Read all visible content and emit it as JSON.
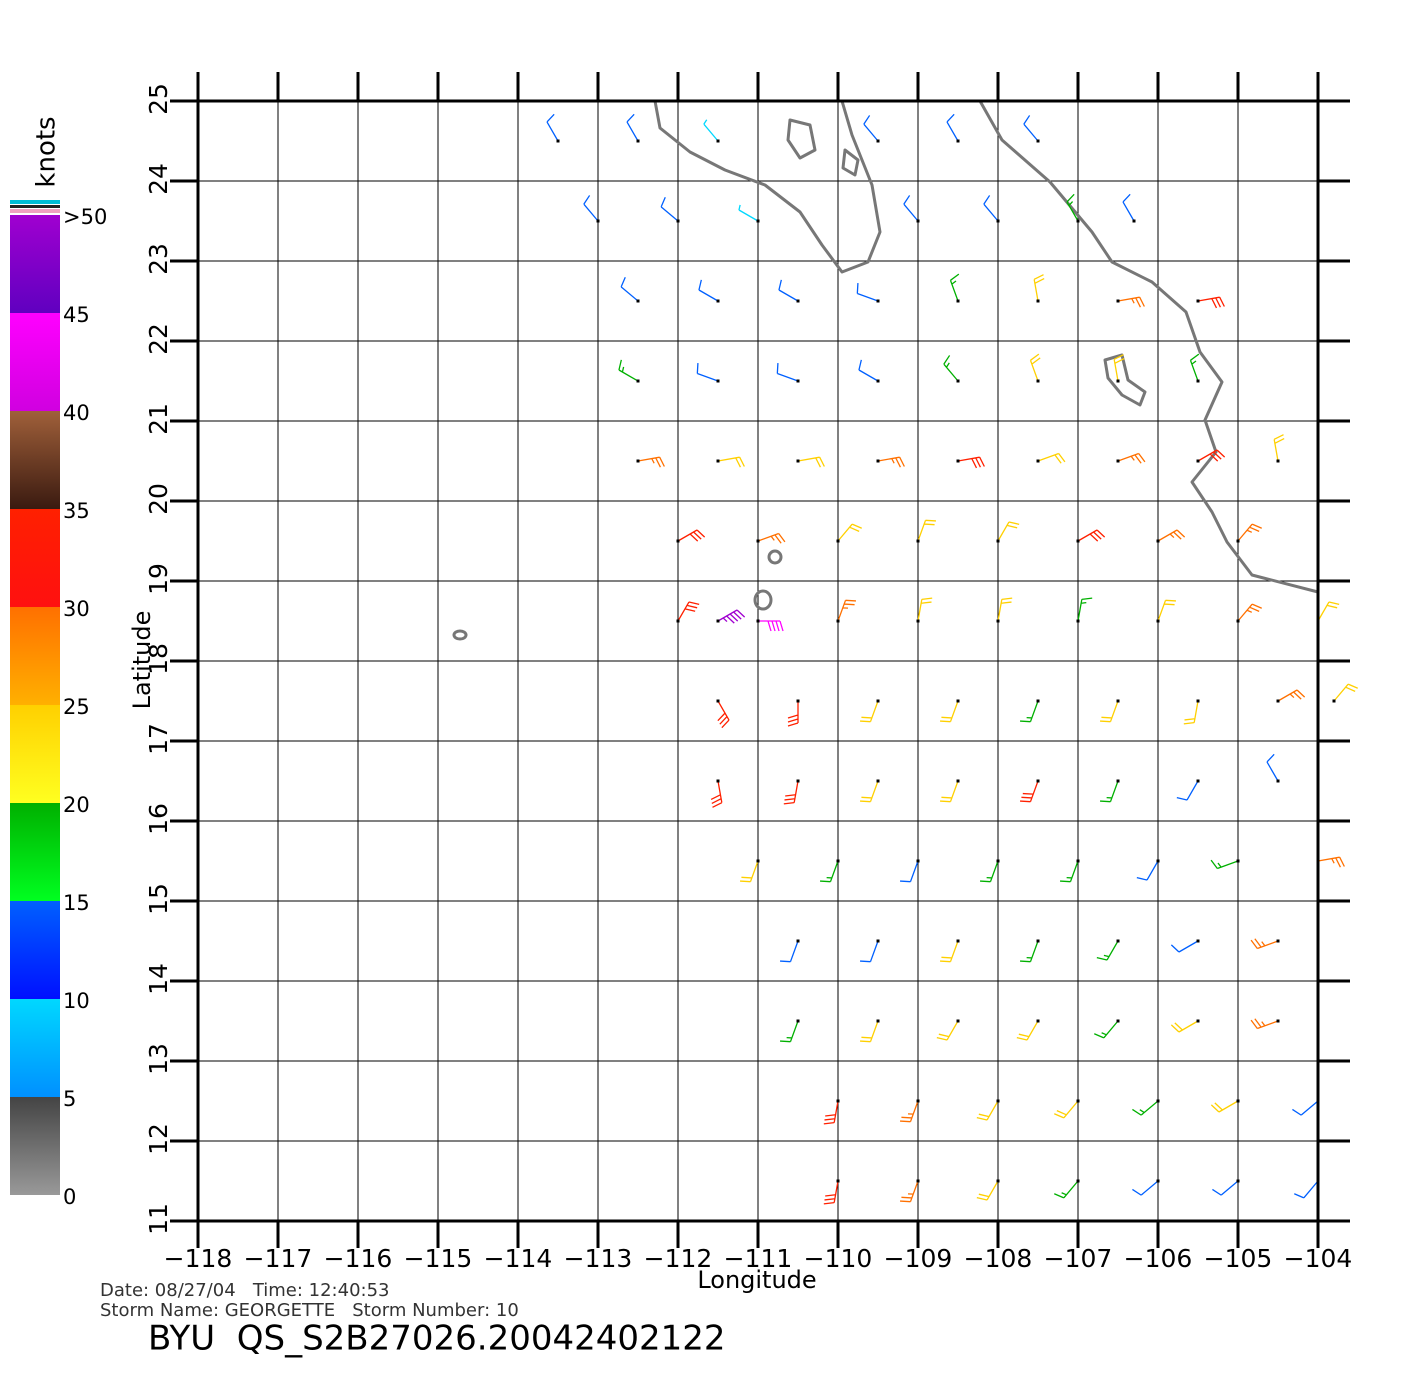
{
  "chart_data": {
    "type": "wind_barb",
    "x_label": "Longitude",
    "y_label": "Latitude",
    "xlim": [
      -118,
      -104
    ],
    "ylim": [
      11,
      25
    ],
    "xticks": [
      {
        "value": -118,
        "label": "−118"
      },
      {
        "value": -117,
        "label": "−117"
      },
      {
        "value": -116,
        "label": "−116"
      },
      {
        "value": -115,
        "label": "−115"
      },
      {
        "value": -114,
        "label": "−114"
      },
      {
        "value": -113,
        "label": "−113"
      },
      {
        "value": -112,
        "label": "−112"
      },
      {
        "value": -111,
        "label": "−111"
      },
      {
        "value": -110,
        "label": "−110"
      },
      {
        "value": -109,
        "label": "−109"
      },
      {
        "value": -108,
        "label": "−108"
      },
      {
        "value": -107,
        "label": "−107"
      },
      {
        "value": -106,
        "label": "−106"
      },
      {
        "value": -105,
        "label": "−105"
      },
      {
        "value": -104,
        "label": "−104"
      }
    ],
    "yticks": [
      11,
      12,
      13,
      14,
      15,
      16,
      17,
      18,
      19,
      20,
      21,
      22,
      23,
      24,
      25
    ],
    "grid": true,
    "colorbar": {
      "label": "knots",
      "lim": [
        0,
        50
      ],
      "ticks": [
        0,
        5,
        10,
        15,
        20,
        25,
        30,
        35,
        40,
        45,
        {
          "value": 50,
          "label": ">50"
        }
      ],
      "bands": [
        {
          "min": 0,
          "max": 5,
          "colors": [
            "#444444",
            "#999999"
          ]
        },
        {
          "min": 5,
          "max": 10,
          "colors": [
            "#00d8ff",
            "#0090ff"
          ]
        },
        {
          "min": 10,
          "max": 15,
          "colors": [
            "#0060ff",
            "#0010ff"
          ]
        },
        {
          "min": 15,
          "max": 20,
          "colors": [
            "#00b000",
            "#00ff20"
          ]
        },
        {
          "min": 20,
          "max": 25,
          "colors": [
            "#ffd000",
            "#ffff20"
          ]
        },
        {
          "min": 25,
          "max": 30,
          "colors": [
            "#ff7000",
            "#ffb000"
          ]
        },
        {
          "min": 30,
          "max": 35,
          "colors": [
            "#ff2000",
            "#ff1010"
          ]
        },
        {
          "min": 35,
          "max": 40,
          "colors": [
            "#a0603a",
            "#3a1a10"
          ]
        },
        {
          "min": 40,
          "max": 45,
          "colors": [
            "#ff00ff",
            "#d000e0"
          ]
        },
        {
          "min": 45,
          "max": 50,
          "colors": [
            "#a000d0",
            "#6000c0"
          ]
        }
      ]
    },
    "barbs": [
      {
        "lon": -113.5,
        "lat": 24.5,
        "speed": 12,
        "direction": 330
      },
      {
        "lon": -112.5,
        "lat": 24.5,
        "speed": 10,
        "direction": 330
      },
      {
        "lon": -111.5,
        "lat": 24.5,
        "speed": 8,
        "direction": 320
      },
      {
        "lon": -109.5,
        "lat": 24.5,
        "speed": 10,
        "direction": 320
      },
      {
        "lon": -108.5,
        "lat": 24.5,
        "speed": 12,
        "direction": 330
      },
      {
        "lon": -107.5,
        "lat": 24.5,
        "speed": 14,
        "direction": 320
      },
      {
        "lon": -113,
        "lat": 23.5,
        "speed": 12,
        "direction": 320
      },
      {
        "lon": -112,
        "lat": 23.5,
        "speed": 10,
        "direction": 310
      },
      {
        "lon": -111,
        "lat": 23.5,
        "speed": 8,
        "direction": 300
      },
      {
        "lon": -109,
        "lat": 23.5,
        "speed": 12,
        "direction": 320
      },
      {
        "lon": -108,
        "lat": 23.5,
        "speed": 13,
        "direction": 320
      },
      {
        "lon": -107,
        "lat": 23.5,
        "speed": 16,
        "direction": 330
      },
      {
        "lon": -106.3,
        "lat": 23.5,
        "speed": 14,
        "direction": 330
      },
      {
        "lon": -112.5,
        "lat": 22.5,
        "speed": 13,
        "direction": 310
      },
      {
        "lon": -111.5,
        "lat": 22.5,
        "speed": 12,
        "direction": 300
      },
      {
        "lon": -110.5,
        "lat": 22.5,
        "speed": 12,
        "direction": 300
      },
      {
        "lon": -109.5,
        "lat": 22.5,
        "speed": 10,
        "direction": 290
      },
      {
        "lon": -108.5,
        "lat": 22.5,
        "speed": 17,
        "direction": 340
      },
      {
        "lon": -107.5,
        "lat": 22.5,
        "speed": 22,
        "direction": 350
      },
      {
        "lon": -106.5,
        "lat": 22.5,
        "speed": 28,
        "direction": 80
      },
      {
        "lon": -105.5,
        "lat": 22.5,
        "speed": 30,
        "direction": 80
      },
      {
        "lon": -112.5,
        "lat": 21.5,
        "speed": 16,
        "direction": 300
      },
      {
        "lon": -111.5,
        "lat": 21.5,
        "speed": 14,
        "direction": 290
      },
      {
        "lon": -110.5,
        "lat": 21.5,
        "speed": 13,
        "direction": 290
      },
      {
        "lon": -109.5,
        "lat": 21.5,
        "speed": 14,
        "direction": 300
      },
      {
        "lon": -108.5,
        "lat": 21.5,
        "speed": 18,
        "direction": 320
      },
      {
        "lon": -107.5,
        "lat": 21.5,
        "speed": 20,
        "direction": 340
      },
      {
        "lon": -106.5,
        "lat": 21.5,
        "speed": 22,
        "direction": 350
      },
      {
        "lon": -105.5,
        "lat": 21.5,
        "speed": 17,
        "direction": 340
      },
      {
        "lon": -112.5,
        "lat": 20.5,
        "speed": 26,
        "direction": 80
      },
      {
        "lon": -111.5,
        "lat": 20.5,
        "speed": 24,
        "direction": 80
      },
      {
        "lon": -110.5,
        "lat": 20.5,
        "speed": 23,
        "direction": 80
      },
      {
        "lon": -109.5,
        "lat": 20.5,
        "speed": 28,
        "direction": 80
      },
      {
        "lon": -108.5,
        "lat": 20.5,
        "speed": 30,
        "direction": 80
      },
      {
        "lon": -107.5,
        "lat": 20.5,
        "speed": 24,
        "direction": 70
      },
      {
        "lon": -106.5,
        "lat": 20.5,
        "speed": 28,
        "direction": 70
      },
      {
        "lon": -105.5,
        "lat": 20.5,
        "speed": 30,
        "direction": 60
      },
      {
        "lon": -104.5,
        "lat": 20.5,
        "speed": 22,
        "direction": 350
      },
      {
        "lon": -112,
        "lat": 19.5,
        "speed": 30,
        "direction": 60
      },
      {
        "lon": -111,
        "lat": 19.5,
        "speed": 28,
        "direction": 70
      },
      {
        "lon": -110,
        "lat": 19.5,
        "speed": 24,
        "direction": 40
      },
      {
        "lon": -109,
        "lat": 19.5,
        "speed": 22,
        "direction": 20
      },
      {
        "lon": -108,
        "lat": 19.5,
        "speed": 23,
        "direction": 30
      },
      {
        "lon": -107,
        "lat": 19.5,
        "speed": 30,
        "direction": 60
      },
      {
        "lon": -106,
        "lat": 19.5,
        "speed": 28,
        "direction": 60
      },
      {
        "lon": -105,
        "lat": 19.5,
        "speed": 26,
        "direction": 40
      },
      {
        "lon": -112,
        "lat": 18.5,
        "speed": 32,
        "direction": 30
      },
      {
        "lon": -111.5,
        "lat": 18.5,
        "speed": 46,
        "direction": 60
      },
      {
        "lon": -111,
        "lat": 18.5,
        "speed": 40,
        "direction": 90
      },
      {
        "lon": -110,
        "lat": 18.5,
        "speed": 28,
        "direction": 20
      },
      {
        "lon": -109,
        "lat": 18.5,
        "speed": 22,
        "direction": 10
      },
      {
        "lon": -108,
        "lat": 18.5,
        "speed": 21,
        "direction": 10
      },
      {
        "lon": -107,
        "lat": 18.5,
        "speed": 18,
        "direction": 10
      },
      {
        "lon": -106,
        "lat": 18.5,
        "speed": 24,
        "direction": 20
      },
      {
        "lon": -105,
        "lat": 18.5,
        "speed": 27,
        "direction": 40
      },
      {
        "lon": -104,
        "lat": 18.5,
        "speed": 20,
        "direction": 30
      },
      {
        "lon": -111.5,
        "lat": 17.5,
        "speed": 30,
        "direction": 150
      },
      {
        "lon": -110.5,
        "lat": 17.5,
        "speed": 32,
        "direction": 180
      },
      {
        "lon": -109.5,
        "lat": 17.5,
        "speed": 24,
        "direction": 200
      },
      {
        "lon": -108.5,
        "lat": 17.5,
        "speed": 22,
        "direction": 200
      },
      {
        "lon": -107.5,
        "lat": 17.5,
        "speed": 18,
        "direction": 200
      },
      {
        "lon": -106.5,
        "lat": 17.5,
        "speed": 22,
        "direction": 200
      },
      {
        "lon": -105.5,
        "lat": 17.5,
        "speed": 20,
        "direction": 190
      },
      {
        "lon": -104.5,
        "lat": 17.5,
        "speed": 27,
        "direction": 60
      },
      {
        "lon": -103.8,
        "lat": 17.5,
        "speed": 22,
        "direction": 40
      },
      {
        "lon": -111.5,
        "lat": 16.5,
        "speed": 34,
        "direction": 170
      },
      {
        "lon": -110.5,
        "lat": 16.5,
        "speed": 30,
        "direction": 190
      },
      {
        "lon": -109.5,
        "lat": 16.5,
        "speed": 20,
        "direction": 200
      },
      {
        "lon": -108.5,
        "lat": 16.5,
        "speed": 22,
        "direction": 200
      },
      {
        "lon": -107.5,
        "lat": 16.5,
        "speed": 30,
        "direction": 200
      },
      {
        "lon": -106.5,
        "lat": 16.5,
        "speed": 17,
        "direction": 200
      },
      {
        "lon": -105.5,
        "lat": 16.5,
        "speed": 13,
        "direction": 210
      },
      {
        "lon": -104.5,
        "lat": 16.5,
        "speed": 12,
        "direction": 330
      },
      {
        "lon": -111,
        "lat": 15.5,
        "speed": 22,
        "direction": 200
      },
      {
        "lon": -110,
        "lat": 15.5,
        "speed": 16,
        "direction": 200
      },
      {
        "lon": -109,
        "lat": 15.5,
        "speed": 14,
        "direction": 200
      },
      {
        "lon": -108,
        "lat": 15.5,
        "speed": 18,
        "direction": 200
      },
      {
        "lon": -107,
        "lat": 15.5,
        "speed": 16,
        "direction": 200
      },
      {
        "lon": -106,
        "lat": 15.5,
        "speed": 12,
        "direction": 210
      },
      {
        "lon": -105,
        "lat": 15.5,
        "speed": 18,
        "direction": 250
      },
      {
        "lon": -104,
        "lat": 15.5,
        "speed": 28,
        "direction": 80
      },
      {
        "lon": -110.5,
        "lat": 14.5,
        "speed": 12,
        "direction": 200
      },
      {
        "lon": -109.5,
        "lat": 14.5,
        "speed": 14,
        "direction": 200
      },
      {
        "lon": -108.5,
        "lat": 14.5,
        "speed": 22,
        "direction": 200
      },
      {
        "lon": -107.5,
        "lat": 14.5,
        "speed": 17,
        "direction": 200
      },
      {
        "lon": -106.5,
        "lat": 14.5,
        "speed": 16,
        "direction": 210
      },
      {
        "lon": -105.5,
        "lat": 14.5,
        "speed": 14,
        "direction": 240
      },
      {
        "lon": -104.5,
        "lat": 14.5,
        "speed": 26,
        "direction": 250
      },
      {
        "lon": -110.5,
        "lat": 13.5,
        "speed": 18,
        "direction": 200
      },
      {
        "lon": -109.5,
        "lat": 13.5,
        "speed": 22,
        "direction": 200
      },
      {
        "lon": -108.5,
        "lat": 13.5,
        "speed": 24,
        "direction": 210
      },
      {
        "lon": -107.5,
        "lat": 13.5,
        "speed": 21,
        "direction": 210
      },
      {
        "lon": -106.5,
        "lat": 13.5,
        "speed": 19,
        "direction": 220
      },
      {
        "lon": -105.5,
        "lat": 13.5,
        "speed": 24,
        "direction": 240
      },
      {
        "lon": -104.5,
        "lat": 13.5,
        "speed": 26,
        "direction": 250
      },
      {
        "lon": -110,
        "lat": 12.5,
        "speed": 30,
        "direction": 190
      },
      {
        "lon": -109,
        "lat": 12.5,
        "speed": 28,
        "direction": 200
      },
      {
        "lon": -108,
        "lat": 12.5,
        "speed": 24,
        "direction": 210
      },
      {
        "lon": -107,
        "lat": 12.5,
        "speed": 21,
        "direction": 220
      },
      {
        "lon": -106,
        "lat": 12.5,
        "speed": 17,
        "direction": 230
      },
      {
        "lon": -105,
        "lat": 12.5,
        "speed": 22,
        "direction": 240
      },
      {
        "lon": -104,
        "lat": 12.5,
        "speed": 14,
        "direction": 230
      },
      {
        "lon": -110,
        "lat": 11.5,
        "speed": 32,
        "direction": 190
      },
      {
        "lon": -109,
        "lat": 11.5,
        "speed": 26,
        "direction": 200
      },
      {
        "lon": -108,
        "lat": 11.5,
        "speed": 22,
        "direction": 210
      },
      {
        "lon": -107,
        "lat": 11.5,
        "speed": 18,
        "direction": 220
      },
      {
        "lon": -106,
        "lat": 11.5,
        "speed": 14,
        "direction": 230
      },
      {
        "lon": -105,
        "lat": 11.5,
        "speed": 12,
        "direction": 230
      },
      {
        "lon": -104,
        "lat": 11.5,
        "speed": 13,
        "direction": 220
      }
    ],
    "footer": {
      "date_line": "Date: 08/27/04   Time: 12:40:53",
      "storm_line": "Storm Name: GEORGETTE   Storm Number: 10",
      "file_name": "BYU  QS_S2B27026.20042402122"
    }
  }
}
